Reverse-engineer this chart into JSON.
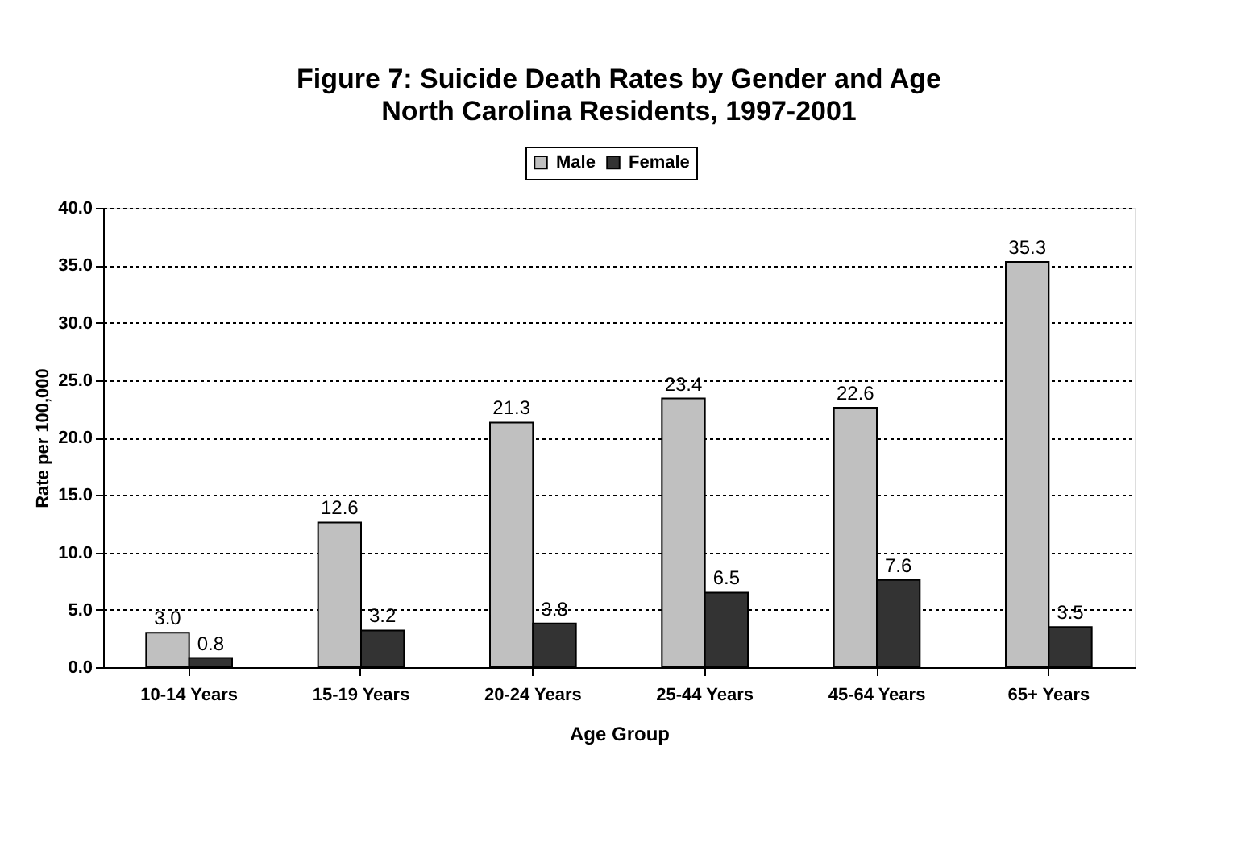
{
  "chart_data": {
    "type": "bar",
    "title": "Figure 7: Suicide Death Rates by Gender and Age",
    "subtitle": "North Carolina Residents, 1997-2001",
    "xlabel": "Age Group",
    "ylabel": "Rate per 100,000",
    "categories": [
      "10-14 Years",
      "15-19 Years",
      "20-24 Years",
      "25-44 Years",
      "45-64 Years",
      "65+ Years"
    ],
    "series": [
      {
        "name": "Male",
        "color": "#c0c0c0",
        "values": [
          3.0,
          12.6,
          21.3,
          23.4,
          22.6,
          35.3
        ],
        "value_labels": [
          "3.0",
          "12.6",
          "21.3",
          "23.4",
          "22.6",
          "35.3"
        ]
      },
      {
        "name": "Female",
        "color": "#333333",
        "values": [
          0.8,
          3.2,
          3.8,
          6.5,
          7.6,
          3.5
        ],
        "value_labels": [
          "0.8",
          "3.2",
          "3.8",
          "6.5",
          "7.6",
          "3.5"
        ]
      }
    ],
    "ylim": [
      0,
      40
    ],
    "yticks": [
      {
        "value": 0,
        "label": "0.0"
      },
      {
        "value": 5,
        "label": "5.0"
      },
      {
        "value": 10,
        "label": "10.0"
      },
      {
        "value": 15,
        "label": "15.0"
      },
      {
        "value": 20,
        "label": "20.0"
      },
      {
        "value": 25,
        "label": "25.0"
      },
      {
        "value": 30,
        "label": "30.0"
      },
      {
        "value": 35,
        "label": "35.0"
      },
      {
        "value": 40,
        "label": "40.0"
      }
    ],
    "grid": "y",
    "legend": "top"
  }
}
